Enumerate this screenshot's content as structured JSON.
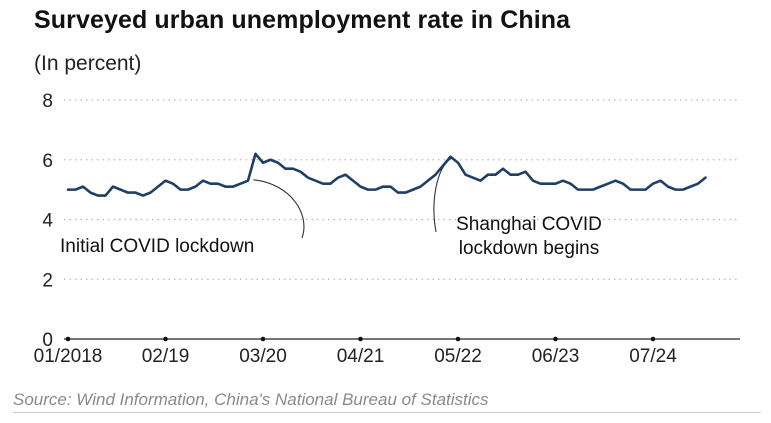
{
  "chart_data": {
    "type": "line",
    "title": "Surveyed urban unemployment rate in China",
    "subtitle": "(In percent)",
    "ylim": [
      0,
      8
    ],
    "yticks": [
      "0",
      "2",
      "4",
      "6",
      "8"
    ],
    "xticks": [
      "01/2018",
      "02/19",
      "03/20",
      "04/21",
      "05/22",
      "06/23",
      "07/24"
    ],
    "grid": "horizontal dotted",
    "series": [
      {
        "color": "#1f3f66",
        "x": [
          "2018-01",
          "2018-02",
          "2018-03",
          "2018-04",
          "2018-05",
          "2018-06",
          "2018-07",
          "2018-08",
          "2018-09",
          "2018-10",
          "2018-11",
          "2018-12",
          "2019-01",
          "2019-02",
          "2019-03",
          "2019-04",
          "2019-05",
          "2019-06",
          "2019-07",
          "2019-08",
          "2019-09",
          "2019-10",
          "2019-11",
          "2019-12",
          "2020-01",
          "2020-02",
          "2020-03",
          "2020-04",
          "2020-05",
          "2020-06",
          "2020-07",
          "2020-08",
          "2020-09",
          "2020-10",
          "2020-11",
          "2020-12",
          "2021-01",
          "2021-02",
          "2021-03",
          "2021-04",
          "2021-05",
          "2021-06",
          "2021-07",
          "2021-08",
          "2021-09",
          "2021-10",
          "2021-11",
          "2021-12",
          "2022-01",
          "2022-02",
          "2022-03",
          "2022-04",
          "2022-05",
          "2022-06",
          "2022-07",
          "2022-08",
          "2022-09",
          "2022-10",
          "2022-11",
          "2022-12",
          "2023-01",
          "2023-02",
          "2023-03",
          "2023-04",
          "2023-05",
          "2023-06",
          "2023-07",
          "2023-08",
          "2023-09",
          "2023-10",
          "2023-11",
          "2023-12",
          "2024-01",
          "2024-02",
          "2024-03",
          "2024-04",
          "2024-05",
          "2024-06",
          "2024-07",
          "2024-08",
          "2024-09",
          "2024-10",
          "2024-11",
          "2024-12",
          "2025-01",
          "2025-02"
        ],
        "values": [
          5.0,
          5.0,
          5.1,
          4.9,
          4.8,
          4.8,
          5.1,
          5.0,
          4.9,
          4.9,
          4.8,
          4.9,
          5.1,
          5.3,
          5.2,
          5.0,
          5.0,
          5.1,
          5.3,
          5.2,
          5.2,
          5.1,
          5.1,
          5.2,
          5.3,
          6.2,
          5.9,
          6.0,
          5.9,
          5.7,
          5.7,
          5.6,
          5.4,
          5.3,
          5.2,
          5.2,
          5.4,
          5.5,
          5.3,
          5.1,
          5.0,
          5.0,
          5.1,
          5.1,
          4.9,
          4.9,
          5.0,
          5.1,
          5.3,
          5.5,
          5.8,
          6.1,
          5.9,
          5.5,
          5.4,
          5.3,
          5.5,
          5.5,
          5.7,
          5.5,
          5.5,
          5.6,
          5.3,
          5.2,
          5.2,
          5.2,
          5.3,
          5.2,
          5.0,
          5.0,
          5.0,
          5.1,
          5.2,
          5.3,
          5.2,
          5.0,
          5.0,
          5.0,
          5.2,
          5.3,
          5.1,
          5.0,
          5.0,
          5.1,
          5.2,
          5.4
        ]
      }
    ],
    "annotations": [
      {
        "text": "Initial COVID lockdown",
        "x": "2020-02",
        "y": 6.2
      },
      {
        "text_lines": [
          "Shanghai COVID",
          "lockdown begins"
        ],
        "x": "2022-04",
        "y": 6.1
      }
    ],
    "source": "Source: Wind Information, China's National Bureau of Statistics"
  }
}
